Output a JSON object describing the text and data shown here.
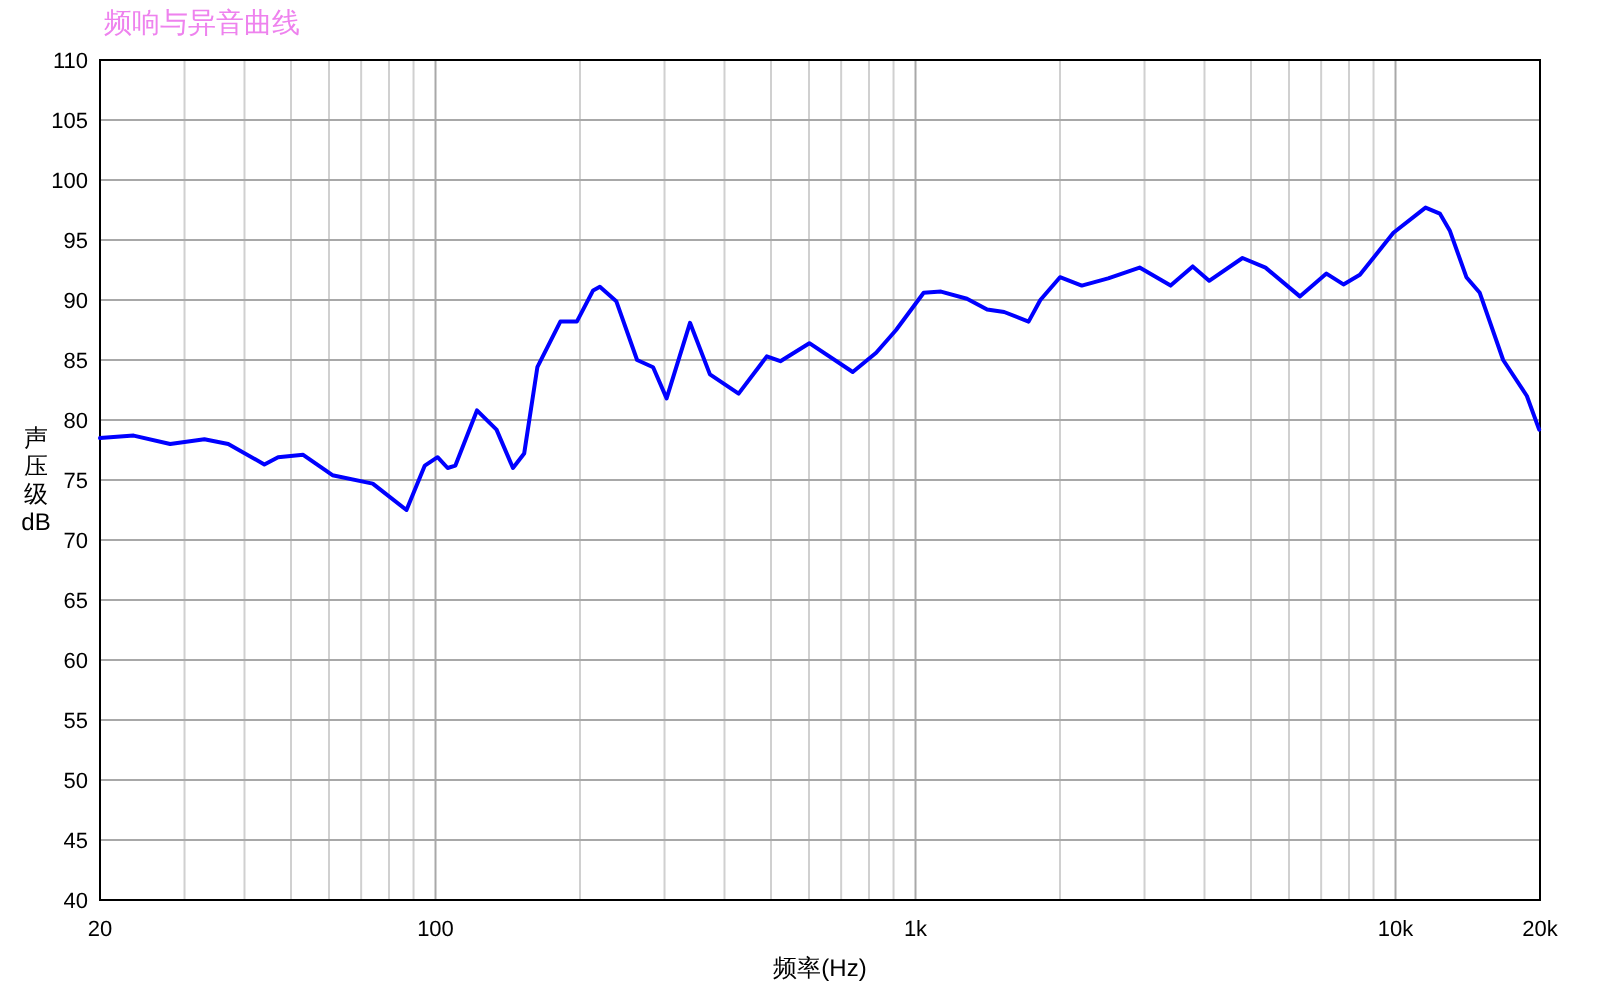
{
  "chart_data": {
    "type": "line",
    "title": "频响与异音曲线",
    "xlabel": "频率(Hz)",
    "ylabel": "声压级 dB",
    "log": "x",
    "grid": true,
    "marker": "none",
    "line_style": "solid",
    "xlim": [
      20,
      20000
    ],
    "ylim": [
      40,
      110
    ],
    "xticks": [
      20,
      {
        "value": 30,
        "label": null
      },
      {
        "value": 40,
        "label": null
      },
      {
        "value": 50,
        "label": null
      },
      {
        "value": 60,
        "label": null
      },
      {
        "value": 70,
        "label": null
      },
      {
        "value": 80,
        "label": null
      },
      {
        "value": 90,
        "label": null
      },
      100,
      {
        "value": 200,
        "label": null
      },
      {
        "value": 300,
        "label": null
      },
      {
        "value": 400,
        "label": null
      },
      {
        "value": 500,
        "label": null
      },
      {
        "value": 600,
        "label": null
      },
      {
        "value": 700,
        "label": null
      },
      {
        "value": 800,
        "label": null
      },
      {
        "value": 900,
        "label": null
      },
      {
        "value": 1000,
        "label": "1k"
      },
      {
        "value": 2000,
        "label": null
      },
      {
        "value": 3000,
        "label": null
      },
      {
        "value": 4000,
        "label": null
      },
      {
        "value": 5000,
        "label": null
      },
      {
        "value": 6000,
        "label": null
      },
      {
        "value": 7000,
        "label": null
      },
      {
        "value": 8000,
        "label": null
      },
      {
        "value": 9000,
        "label": null
      },
      {
        "value": 10000,
        "label": "10k"
      },
      {
        "value": 20000,
        "label": "20k"
      }
    ],
    "yticks": [
      40,
      45,
      50,
      55,
      60,
      65,
      70,
      75,
      80,
      85,
      90,
      95,
      100,
      105,
      110
    ],
    "x": [
      20,
      23.5,
      28,
      33,
      37,
      44,
      47,
      53,
      61,
      74,
      87,
      95,
      101,
      106,
      110,
      122,
      134,
      145,
      153,
      163,
      182,
      197,
      213,
      220,
      238,
      263,
      284,
      303,
      339,
      373,
      428,
      490,
      523,
      601,
      740,
      828,
      911,
      1040,
      1130,
      1280,
      1410,
      1530,
      1720,
      1820,
      2000,
      2220,
      2520,
      2930,
      3400,
      3780,
      4090,
      4800,
      5360,
      6320,
      7180,
      7790,
      8430,
      9900,
      11550,
      12370,
      12970,
      14050,
      14980,
      16760,
      18780,
      19920
    ],
    "series": [
      {
        "color": "#0000ff",
        "values": [
          78.5,
          78.7,
          78.0,
          78.4,
          78.0,
          76.3,
          76.9,
          77.1,
          75.4,
          74.7,
          72.5,
          76.2,
          76.9,
          76.0,
          76.2,
          80.8,
          79.2,
          76.0,
          77.2,
          84.4,
          88.2,
          88.2,
          90.8,
          91.1,
          89.9,
          85.0,
          84.4,
          81.8,
          88.1,
          83.8,
          82.2,
          85.3,
          84.9,
          86.4,
          84.0,
          85.6,
          87.5,
          90.6,
          90.7,
          90.1,
          89.2,
          89.0,
          88.2,
          90.0,
          91.9,
          91.2,
          91.8,
          92.7,
          91.2,
          92.8,
          91.6,
          93.5,
          92.7,
          90.3,
          92.2,
          91.3,
          92.1,
          95.6,
          97.7,
          97.2,
          95.8,
          91.9,
          90.6,
          85.0,
          82.0,
          79.2
        ]
      }
    ]
  }
}
